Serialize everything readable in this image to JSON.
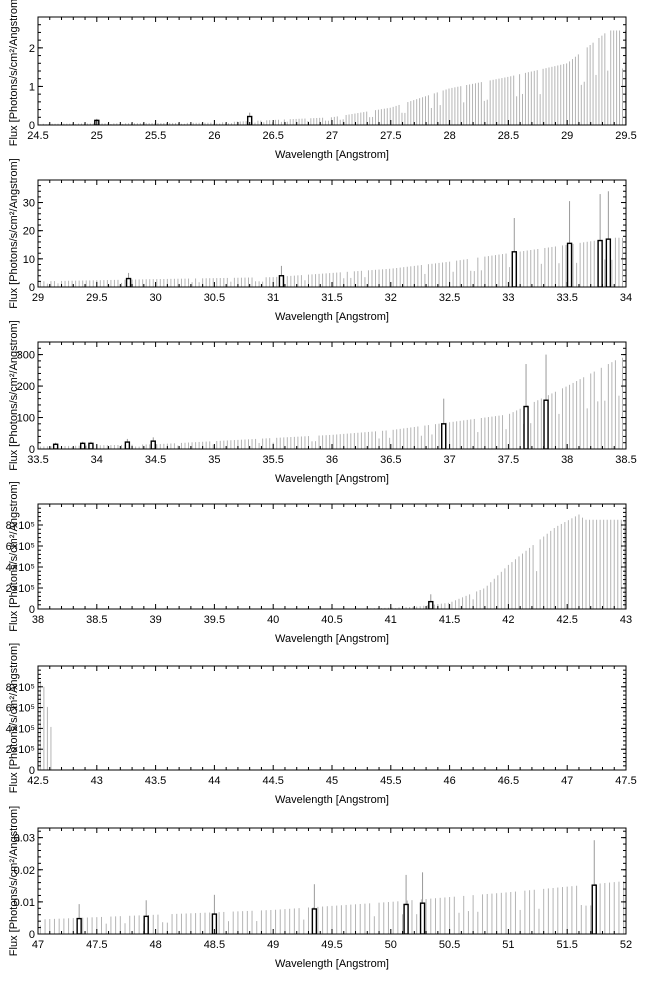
{
  "chart_data": [
    {
      "type": "bar",
      "xlabel": "Wavelength [Angstrom]",
      "ylabel": "Flux [Photons/s/cm²/Angstrom]",
      "xlim": [
        24.5,
        29.5
      ],
      "ylim": [
        0,
        2.8
      ],
      "xticks": [
        "24.5",
        "25",
        "25.5",
        "26",
        "26.5",
        "27",
        "27.5",
        "28",
        "28.5",
        "29",
        "29.5"
      ],
      "yticks": [
        {
          "v": 0,
          "label": "0"
        },
        {
          "v": 1,
          "label": "1"
        },
        {
          "v": 2,
          "label": "2"
        }
      ],
      "background_bars": {
        "start": 24.52,
        "step": 0.025,
        "profile": [
          [
            24.5,
            0.03
          ],
          [
            26.0,
            0.06
          ],
          [
            27.0,
            0.2
          ],
          [
            27.5,
            0.45
          ],
          [
            28.0,
            0.95
          ],
          [
            28.5,
            1.25
          ],
          [
            29.0,
            1.6
          ],
          [
            29.35,
            2.45
          ]
        ]
      },
      "lines": [
        {
          "x": 25.0,
          "y": 0.12,
          "err": 0.04
        },
        {
          "x": 26.3,
          "y": 0.22,
          "err": 0.1
        }
      ]
    },
    {
      "type": "bar",
      "xlabel": "Wavelength [Angstrom]",
      "ylabel": "Flux [Photons/s/cm²/Angstrom]",
      "xlim": [
        29,
        34
      ],
      "ylim": [
        0,
        38
      ],
      "xticks": [
        "29",
        "29.5",
        "30",
        "30.5",
        "31",
        "31.5",
        "32",
        "32.5",
        "33",
        "33.5",
        "34"
      ],
      "yticks": [
        {
          "v": 0,
          "label": "0"
        },
        {
          "v": 10,
          "label": "10"
        },
        {
          "v": 20,
          "label": "20"
        },
        {
          "v": 30,
          "label": "30"
        }
      ],
      "background_bars": {
        "start": 29.02,
        "step": 0.03,
        "profile": [
          [
            29.0,
            2.0
          ],
          [
            30.0,
            2.8
          ],
          [
            31.0,
            3.5
          ],
          [
            31.5,
            5.0
          ],
          [
            32.0,
            6.5
          ],
          [
            32.5,
            9.0
          ],
          [
            33.0,
            12.0
          ],
          [
            33.5,
            15.0
          ],
          [
            33.9,
            17.5
          ]
        ]
      },
      "lines": [
        {
          "x": 29.77,
          "y": 3.0,
          "err": 2.0
        },
        {
          "x": 31.07,
          "y": 4.0,
          "err": 3.5
        },
        {
          "x": 33.05,
          "y": 12.5,
          "err": 12.0
        },
        {
          "x": 33.52,
          "y": 15.5,
          "err": 15.0
        },
        {
          "x": 33.78,
          "y": 16.5,
          "err": 16.5
        },
        {
          "x": 33.85,
          "y": 17.0,
          "err": 17.0
        }
      ]
    },
    {
      "type": "bar",
      "xlabel": "Wavelength [Angstrom]",
      "ylabel": "Flux [Photons/s/cm²/Angstrom]",
      "xlim": [
        33.5,
        38.5
      ],
      "ylim": [
        0,
        340
      ],
      "xticks": [
        "33.5",
        "34",
        "34.5",
        "35",
        "35.5",
        "36",
        "36.5",
        "37",
        "37.5",
        "38",
        "38.5"
      ],
      "yticks": [
        {
          "v": 0,
          "label": "0"
        },
        {
          "v": 100,
          "label": "100"
        },
        {
          "v": 200,
          "label": "200"
        },
        {
          "v": 300,
          "label": "300"
        }
      ],
      "background_bars": {
        "start": 33.52,
        "step": 0.03,
        "profile": [
          [
            33.5,
            8
          ],
          [
            34.5,
            15
          ],
          [
            35.0,
            25
          ],
          [
            35.5,
            35
          ],
          [
            36.0,
            45
          ],
          [
            36.5,
            60
          ],
          [
            37.0,
            85
          ],
          [
            37.5,
            110
          ],
          [
            38.0,
            200
          ],
          [
            38.45,
            290
          ]
        ]
      },
      "lines": [
        {
          "x": 33.65,
          "y": 15,
          "err": 5
        },
        {
          "x": 33.88,
          "y": 18,
          "err": 5
        },
        {
          "x": 33.95,
          "y": 18,
          "err": 5
        },
        {
          "x": 34.26,
          "y": 22,
          "err": 10
        },
        {
          "x": 34.48,
          "y": 25,
          "err": 12
        },
        {
          "x": 36.95,
          "y": 80,
          "err": 80
        },
        {
          "x": 37.65,
          "y": 135,
          "err": 135
        },
        {
          "x": 37.82,
          "y": 155,
          "err": 145
        }
      ]
    },
    {
      "type": "bar",
      "xlabel": "Wavelength [Angstrom]",
      "ylabel": "Flux [Photons/s/cm²/Angstrom]",
      "xlim": [
        38,
        43
      ],
      "ylim": [
        0,
        1000000
      ],
      "xticks": [
        "38",
        "38.5",
        "39",
        "39.5",
        "40",
        "40.5",
        "41",
        "41.5",
        "42",
        "42.5",
        "43"
      ],
      "yticks": [
        {
          "v": 0,
          "label": "0"
        },
        {
          "v": 200000,
          "label": "2×10⁵"
        },
        {
          "v": 400000,
          "label": "4×10⁵"
        },
        {
          "v": 600000,
          "label": "6×10⁵"
        },
        {
          "v": 800000,
          "label": "8×10⁵"
        }
      ],
      "background_bars": {
        "start": 40.8,
        "step": 0.03,
        "profile": [
          [
            40.8,
            5000
          ],
          [
            41.2,
            20000
          ],
          [
            41.5,
            60000
          ],
          [
            41.8,
            200000
          ],
          [
            42.0,
            420000
          ],
          [
            42.2,
            600000
          ],
          [
            42.4,
            780000
          ],
          [
            42.6,
            900000
          ],
          [
            42.65,
            850000
          ]
        ]
      },
      "lines": [
        {
          "x": 41.34,
          "y": 70000,
          "err": 70000
        }
      ]
    },
    {
      "type": "bar",
      "xlabel": "Wavelength [Angstrom]",
      "ylabel": "Flux [Photons/s/cm²/Angstrom]",
      "xlim": [
        42.5,
        47.5
      ],
      "ylim": [
        0,
        1000000
      ],
      "xticks": [
        "42.5",
        "43",
        "43.5",
        "44",
        "44.5",
        "45",
        "45.5",
        "46",
        "46.5",
        "47",
        "47.5"
      ],
      "yticks": [
        {
          "v": 0,
          "label": "0"
        },
        {
          "v": 200000,
          "label": "2×10⁵"
        },
        {
          "v": 400000,
          "label": "4×10⁵"
        },
        {
          "v": 600000,
          "label": "6×10⁵"
        },
        {
          "v": 800000,
          "label": "8×10⁵"
        }
      ],
      "background_bars": {
        "start": 42.52,
        "step": 0.03,
        "profile": [
          [
            42.5,
            900000
          ],
          [
            42.55,
            800000
          ],
          [
            42.62,
            350000
          ]
        ],
        "end": 42.64
      },
      "lines": []
    },
    {
      "type": "bar",
      "xlabel": "Wavelength [Angstrom]",
      "ylabel": "Flux [Photons/s/cm²/Angstrom]",
      "xlim": [
        47,
        52
      ],
      "ylim": [
        0,
        0.033
      ],
      "xticks": [
        "47",
        "47.5",
        "48",
        "48.5",
        "49",
        "49.5",
        "50",
        "50.5",
        "51",
        "51.5",
        "52"
      ],
      "yticks": [
        {
          "v": 0,
          "label": "0"
        },
        {
          "v": 0.01,
          "label": "0.01"
        },
        {
          "v": 0.02,
          "label": "0.02"
        },
        {
          "v": 0.03,
          "label": "0.03"
        }
      ],
      "background_bars": {
        "start": 47.02,
        "step": 0.04,
        "profile": [
          [
            47.0,
            0.0045
          ],
          [
            48.0,
            0.006
          ],
          [
            49.0,
            0.0075
          ],
          [
            50.0,
            0.01
          ],
          [
            51.0,
            0.013
          ],
          [
            52.0,
            0.0165
          ]
        ]
      },
      "lines": [
        {
          "x": 47.35,
          "y": 0.0048,
          "err": 0.0045
        },
        {
          "x": 47.92,
          "y": 0.0055,
          "err": 0.005
        },
        {
          "x": 48.5,
          "y": 0.0062,
          "err": 0.006
        },
        {
          "x": 49.35,
          "y": 0.0078,
          "err": 0.0077
        },
        {
          "x": 50.13,
          "y": 0.0092,
          "err": 0.0092
        },
        {
          "x": 50.27,
          "y": 0.0096,
          "err": 0.0096
        },
        {
          "x": 51.73,
          "y": 0.0152,
          "err": 0.014
        }
      ]
    }
  ]
}
